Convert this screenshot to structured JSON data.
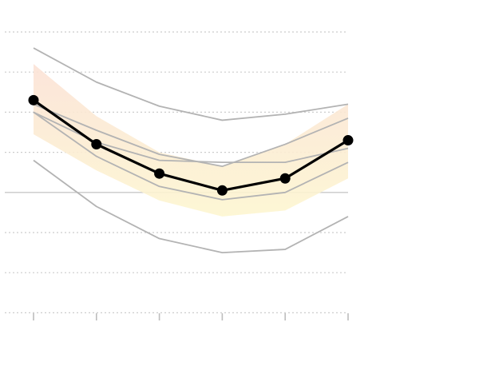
{
  "chart_data": {
    "type": "line",
    "x": [
      1,
      2,
      3,
      4,
      5,
      6
    ],
    "ylim": [
      -3,
      4
    ],
    "gridlines_y": [
      -3,
      -2,
      -1,
      1,
      2,
      3,
      4
    ],
    "baseline_y": 0,
    "grid": true,
    "legend": "none",
    "band": {
      "upper": [
        3.2,
        1.9,
        1.0,
        0.65,
        1.2,
        2.2
      ],
      "lower": [
        1.45,
        0.55,
        -0.2,
        -0.6,
        -0.45,
        0.35
      ],
      "colors": {
        "top": "#fbe2d6",
        "bottom": "#fdf6d0"
      }
    },
    "series": [
      {
        "role": "main",
        "values": [
          2.3,
          1.2,
          0.47,
          0.05,
          0.35,
          1.3
        ],
        "color": "#000000",
        "markers": true
      },
      {
        "role": "reference",
        "values": [
          3.6,
          2.75,
          2.15,
          1.8,
          1.95,
          2.2
        ],
        "color": "#b3b3b3",
        "markers": false
      },
      {
        "role": "reference",
        "values": [
          2.2,
          1.55,
          0.95,
          0.65,
          1.2,
          1.85
        ],
        "color": "#b3b3b3",
        "markers": false
      },
      {
        "role": "reference",
        "values": [
          2.0,
          1.25,
          0.8,
          0.75,
          0.75,
          1.1
        ],
        "color": "#b3b3b3",
        "markers": false
      },
      {
        "role": "reference",
        "values": [
          2.0,
          0.9,
          0.15,
          -0.18,
          0.0,
          0.75
        ],
        "color": "#b3b3b3",
        "markers": false
      },
      {
        "role": "reference",
        "values": [
          0.8,
          -0.35,
          -1.15,
          -1.5,
          -1.42,
          -0.6
        ],
        "color": "#b3b3b3",
        "markers": false
      }
    ],
    "colors": {
      "grid": "#cccccc",
      "baseline": "#c8c8c8",
      "axis": "#bdbdbd"
    }
  }
}
